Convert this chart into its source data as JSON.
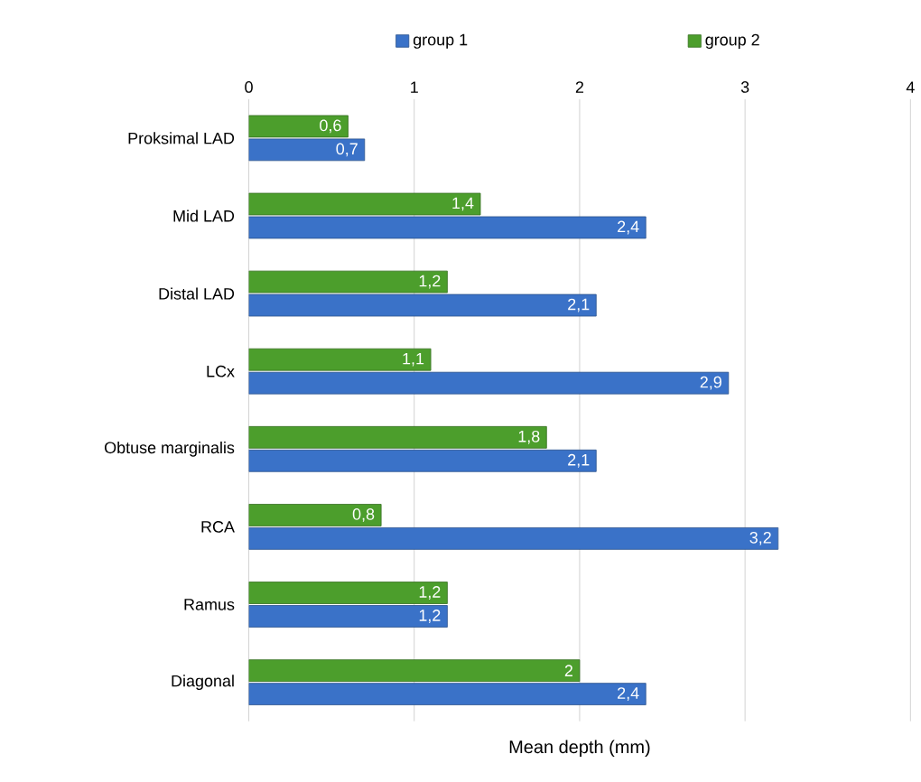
{
  "chart_data": {
    "type": "bar",
    "orientation": "horizontal",
    "xlabel": "Mean depth (mm)",
    "categories": [
      "Proksimal LAD",
      "Mid LAD",
      "Distal LAD",
      "LCx",
      "Obtuse marginalis",
      "RCA",
      "Ramus",
      "Diagonal"
    ],
    "series": [
      {
        "name": "group 1",
        "color": "#3a72c8",
        "values": [
          0.7,
          2.4,
          2.1,
          2.9,
          2.1,
          3.2,
          1.2,
          2.4
        ],
        "value_labels": [
          "0,7",
          "2,4",
          "2,1",
          "2,9",
          "2,1",
          "3,2",
          "1,2",
          "2,4"
        ]
      },
      {
        "name": "group 2",
        "color": "#4c9e2c",
        "values": [
          0.6,
          1.4,
          1.2,
          1.1,
          1.8,
          0.8,
          1.2,
          2
        ],
        "value_labels": [
          "0,6",
          "1,4",
          "1,2",
          "1,1",
          "1,8",
          "0,8",
          "1,2",
          "2"
        ]
      }
    ],
    "xlim": [
      0,
      4
    ],
    "xticks": [
      0,
      1,
      2,
      3,
      4
    ],
    "grid": "x",
    "legend": "top"
  }
}
